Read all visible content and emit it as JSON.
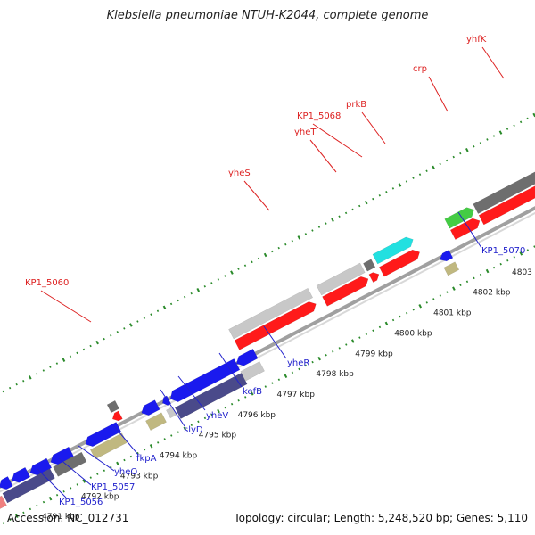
{
  "title": "Klebsiella pneumoniae NTUH-K2044, complete genome",
  "footer": {
    "accession": "Accession: NC_012731",
    "topology": "Topology: circular; Length: 5,248,520 bp; Genes: 5,110"
  },
  "colors": {
    "backbone": "#a0a0a0",
    "tick_green": "#2a8a2a",
    "red": "#ff1a1a",
    "blue": "#1a1aee",
    "darkblue": "#4a4a8a",
    "gray": "#c8c8c8",
    "darkgray": "#6e6e6e",
    "cyan": "#22e0e0",
    "green": "#44cc44",
    "olive": "#c0b880",
    "pink": "#f08080",
    "label_red": "#dd2222",
    "label_blue": "#2222cc"
  },
  "kbp_labels": [
    {
      "label": "4791 kbp",
      "kbp": 4791
    },
    {
      "label": "4792 kbp",
      "kbp": 4792
    },
    {
      "label": "4793 kbp",
      "kbp": 4793
    },
    {
      "label": "4794 kbp",
      "kbp": 4794
    },
    {
      "label": "4795 kbp",
      "kbp": 4795
    },
    {
      "label": "4796 kbp",
      "kbp": 4796
    },
    {
      "label": "4797 kbp",
      "kbp": 4797
    },
    {
      "label": "4798 kbp",
      "kbp": 4798
    },
    {
      "label": "4799 kbp",
      "kbp": 4799
    },
    {
      "label": "4800 kbp",
      "kbp": 4800
    },
    {
      "label": "4801 kbp",
      "kbp": 4801
    },
    {
      "label": "4802 kbp",
      "kbp": 4802
    },
    {
      "label": "4803 kbp",
      "kbp": 4803
    }
  ],
  "genes_top": [
    {
      "name": "KP1_5060",
      "label_color": "label_red"
    },
    {
      "name": "yheS",
      "label_color": "label_red"
    },
    {
      "name": "yheT",
      "label_color": "label_red"
    },
    {
      "name": "KP1_5068",
      "label_color": "label_red"
    },
    {
      "name": "prkB",
      "label_color": "label_red"
    },
    {
      "name": "crp",
      "label_color": "label_red"
    },
    {
      "name": "yhfK",
      "label_color": "label_red"
    }
  ],
  "genes_bottom": [
    {
      "name": "KP1_5056",
      "label_color": "label_blue"
    },
    {
      "name": "KP1_5057",
      "label_color": "label_blue"
    },
    {
      "name": "yheO",
      "label_color": "label_blue"
    },
    {
      "name": "fkpA",
      "label_color": "label_blue"
    },
    {
      "name": "slyD",
      "label_color": "label_blue"
    },
    {
      "name": "yheV",
      "label_color": "label_blue"
    },
    {
      "name": "kefB",
      "label_color": "label_blue"
    },
    {
      "name": "yheR",
      "label_color": "label_blue"
    },
    {
      "name": "KP1_5070",
      "label_color": "label_blue"
    }
  ]
}
